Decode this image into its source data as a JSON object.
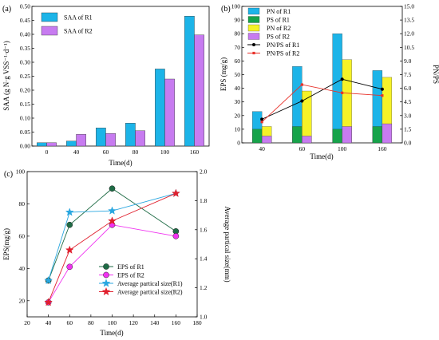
{
  "chart_data": [
    {
      "panel_label": "(a)",
      "type": "bar",
      "categories": [
        "0",
        "40",
        "60",
        "80",
        "100",
        "160"
      ],
      "xlabel": "Time(d)",
      "ylabel": "SAA (g N·g VSS⁻¹·d⁻¹)",
      "ylim": [
        0,
        0.5
      ],
      "yticks": [
        "0.00",
        "0.05",
        "0.10",
        "0.15",
        "0.20",
        "0.25",
        "0.30",
        "0.35",
        "0.40",
        "0.45",
        "0.50"
      ],
      "legend_position": "top-left",
      "series": [
        {
          "name": "SAA of R1",
          "color": "#1CB4E8",
          "values": [
            0.012,
            0.018,
            0.065,
            0.082,
            0.276,
            0.465
          ]
        },
        {
          "name": "SAA of R2",
          "color": "#C77BF0",
          "values": [
            0.012,
            0.042,
            0.045,
            0.055,
            0.24,
            0.398
          ]
        }
      ]
    },
    {
      "panel_label": "(b)",
      "type": "bar",
      "categories": [
        "40",
        "60",
        "100",
        "160"
      ],
      "xlabel": "Time(d)",
      "ylabel": "EPS (mg/g)",
      "ylim": [
        0,
        100
      ],
      "yticks": [
        "0",
        "10",
        "20",
        "30",
        "40",
        "50",
        "60",
        "70",
        "80",
        "90",
        "100"
      ],
      "y2label": "PN/PS",
      "y2lim": [
        0,
        15
      ],
      "y2ticks": [
        "0.0",
        "1.5",
        "3.0",
        "4.5",
        "6.0",
        "7.5",
        "9.0",
        "10.5",
        "12.0",
        "13.5",
        "15.0"
      ],
      "legend_position": "top-left",
      "series": [
        {
          "name": "PN of R1",
          "color": "#1CB4E8",
          "kind": "bar",
          "values": [
            23,
            56,
            80,
            53
          ]
        },
        {
          "name": "PS of R1",
          "color": "#16A34A",
          "kind": "bar",
          "values": [
            10,
            12,
            10,
            12
          ]
        },
        {
          "name": "PN of R2",
          "color": "#F6F227",
          "kind": "bar",
          "values": [
            12,
            38,
            61,
            48
          ]
        },
        {
          "name": "PS of R2",
          "color": "#C77BF0",
          "kind": "bar",
          "values": [
            5,
            5,
            12,
            14
          ]
        },
        {
          "name": "PN/PS of R1",
          "color": "#000000",
          "kind": "line",
          "axis": "right",
          "values": [
            2.6,
            4.6,
            7.0,
            5.9
          ]
        },
        {
          "name": "PN/PS of R2",
          "color": "#E8312A",
          "kind": "line",
          "axis": "right",
          "values": [
            2.3,
            6.4,
            5.5,
            5.2
          ]
        }
      ]
    },
    {
      "panel_label": "(c)",
      "type": "line",
      "x": [
        40,
        60,
        100,
        160
      ],
      "xlabel": "Time(d)",
      "ylabel": "EPS(mg/g)",
      "xlim": [
        20,
        180
      ],
      "xticks": [
        "20",
        "40",
        "60",
        "80",
        "100",
        "120",
        "140",
        "160",
        "180"
      ],
      "ylim": [
        10,
        100
      ],
      "yticks": [
        "20",
        "40",
        "60",
        "80",
        "100"
      ],
      "y2label": "Average partical size(mm)",
      "y2lim": [
        1.0,
        2.0
      ],
      "y2ticks": [
        "1.0",
        "1.2",
        "1.4",
        "1.6",
        "1.8",
        "2.0"
      ],
      "legend_position": "bottom-right",
      "series": [
        {
          "name": "EPS of R1",
          "color": "#1E6B45",
          "marker": "circle",
          "axis": "left",
          "values": [
            32.5,
            67,
            89.5,
            63
          ]
        },
        {
          "name": "EPS of R2",
          "color": "#F032F0",
          "marker": "circle",
          "axis": "left",
          "values": [
            19,
            41,
            67,
            60
          ]
        },
        {
          "name": "Average partical size(R1)",
          "color": "#2AA7E0",
          "marker": "star",
          "axis": "right",
          "values": [
            1.25,
            1.72,
            1.73,
            1.85
          ]
        },
        {
          "name": "Average partical size(R2)",
          "color": "#E0202E",
          "marker": "star",
          "axis": "right",
          "values": [
            1.1,
            1.46,
            1.66,
            1.85
          ]
        }
      ]
    }
  ]
}
